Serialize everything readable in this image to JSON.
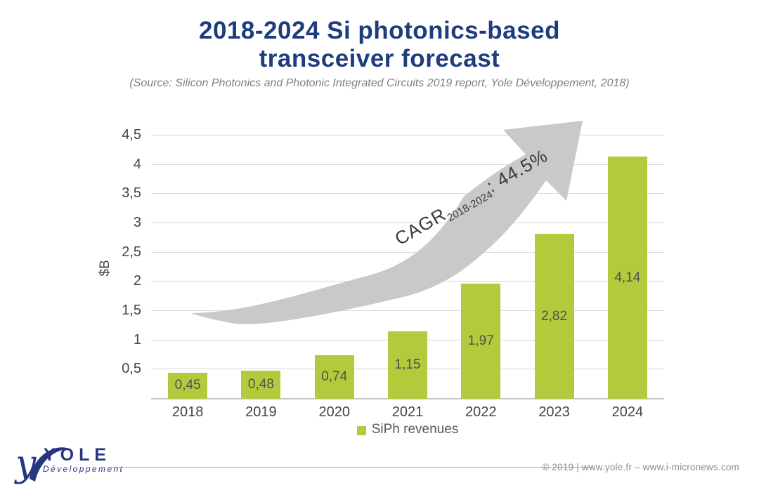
{
  "header": {
    "title_line1": "2018-2024 Si photonics-based",
    "title_line2": "transceiver forecast",
    "source_note": "(Source: Silicon Photonics and Photonic Integrated Circuits 2019 report, Yole Développement, 2018)"
  },
  "chart_data": {
    "type": "bar",
    "title": "2018-2024 Si photonics-based transceiver forecast",
    "source_note": "(Source: Silicon Photonics and Photonic Integrated Circuits 2019 report, Yole Développement, 2018)",
    "categories": [
      "2018",
      "2019",
      "2020",
      "2021",
      "2022",
      "2023",
      "2024"
    ],
    "series": [
      {
        "name": "SiPh revenues",
        "values": [
          0.45,
          0.48,
          0.74,
          1.15,
          1.97,
          2.82,
          4.14
        ],
        "value_labels": [
          "0,45",
          "0,48",
          "0,74",
          "1,15",
          "1,97",
          "2,82",
          "4,14"
        ]
      }
    ],
    "xlabel": "",
    "ylabel": "$B",
    "ylim": [
      0,
      4.5
    ],
    "yticks": [
      {
        "value": 0.5,
        "label": "0,5"
      },
      {
        "value": 1,
        "label": "1"
      },
      {
        "value": 1.5,
        "label": "1,5"
      },
      {
        "value": 2,
        "label": "2"
      },
      {
        "value": 2.5,
        "label": "2,5"
      },
      {
        "value": 3,
        "label": "3"
      },
      {
        "value": 3.5,
        "label": "3,5"
      },
      {
        "value": 4,
        "label": "4"
      },
      {
        "value": 4.5,
        "label": "4,5"
      }
    ],
    "grid": "horizontal",
    "legend_position": "bottom",
    "annotation": {
      "prefix": "CAGR",
      "subscript": "2018-2024",
      "suffix": ": 44.5%"
    }
  },
  "footer": {
    "logo_text": "YOLE",
    "logo_subtext": "Développement",
    "copyright": "© 2019 | www.yole.fr – www.i-micronews.com"
  },
  "colors": {
    "bar": "#b5c93c",
    "title": "#1e3c7e",
    "arrow": "#c9c9c9",
    "grid": "#d9d9d9",
    "axis_text": "#454545",
    "value_text": "#4f4f4f",
    "legend_text": "#595959",
    "subtitle_text": "#7f7f7f",
    "footer_text": "#8c8c8c",
    "logo_blue": "#26357f"
  }
}
